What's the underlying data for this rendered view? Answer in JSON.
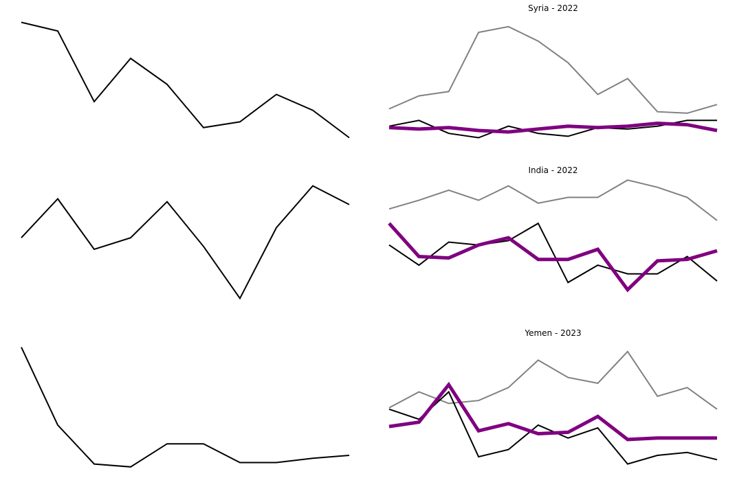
{
  "colors": {
    "black": "#000000",
    "gray": "#808080",
    "purple": "#800080"
  },
  "chart_data": [
    {
      "type": "line",
      "title": "",
      "x": [
        1,
        2,
        3,
        4,
        5,
        6,
        7,
        8,
        9,
        10
      ],
      "ylim": [
        0,
        1
      ],
      "series": [
        {
          "color": "black",
          "values": [
            0.95,
            0.89,
            0.4,
            0.7,
            0.52,
            0.22,
            0.26,
            0.45,
            0.34,
            0.15
          ]
        }
      ]
    },
    {
      "type": "line",
      "title": "Syria - 2022",
      "x": [
        1,
        2,
        3,
        4,
        5,
        6,
        7,
        8,
        9,
        10,
        11,
        12
      ],
      "ylim": [
        0,
        1
      ],
      "series": [
        {
          "color": "gray",
          "values": [
            0.35,
            0.44,
            0.47,
            0.88,
            0.92,
            0.82,
            0.67,
            0.45,
            0.56,
            0.33,
            0.32,
            0.38
          ]
        },
        {
          "color": "black",
          "values": [
            0.23,
            0.27,
            0.18,
            0.15,
            0.23,
            0.18,
            0.16,
            0.22,
            0.21,
            0.23,
            0.27,
            0.27
          ]
        },
        {
          "color": "purple",
          "values": [
            0.22,
            0.21,
            0.22,
            0.2,
            0.19,
            0.21,
            0.23,
            0.22,
            0.23,
            0.25,
            0.24,
            0.2
          ]
        }
      ]
    },
    {
      "type": "line",
      "title": "",
      "x": [
        1,
        2,
        3,
        4,
        5,
        6,
        7,
        8,
        9,
        10
      ],
      "ylim": [
        0,
        1
      ],
      "series": [
        {
          "color": "black",
          "values": [
            0.58,
            0.85,
            0.5,
            0.58,
            0.83,
            0.52,
            0.16,
            0.65,
            0.94,
            0.81
          ]
        }
      ]
    },
    {
      "type": "line",
      "title": "India - 2022",
      "x": [
        1,
        2,
        3,
        4,
        5,
        6,
        7,
        8,
        9,
        10,
        11,
        12
      ],
      "ylim": [
        0,
        1
      ],
      "series": [
        {
          "color": "gray",
          "values": [
            0.78,
            0.84,
            0.91,
            0.84,
            0.94,
            0.82,
            0.86,
            0.86,
            0.98,
            0.93,
            0.86,
            0.7
          ]
        },
        {
          "color": "black",
          "values": [
            0.53,
            0.39,
            0.55,
            0.53,
            0.56,
            0.68,
            0.27,
            0.39,
            0.33,
            0.33,
            0.45,
            0.28
          ]
        },
        {
          "color": "purple",
          "values": [
            0.68,
            0.45,
            0.44,
            0.53,
            0.58,
            0.43,
            0.43,
            0.5,
            0.22,
            0.42,
            0.43,
            0.49
          ]
        }
      ]
    },
    {
      "type": "line",
      "title": "",
      "x": [
        1,
        2,
        3,
        4,
        5,
        6,
        7,
        8,
        9,
        10
      ],
      "ylim": [
        0,
        1
      ],
      "series": [
        {
          "color": "black",
          "values": [
            0.95,
            0.41,
            0.14,
            0.12,
            0.28,
            0.28,
            0.15,
            0.15,
            0.18,
            0.2
          ]
        }
      ]
    },
    {
      "type": "line",
      "title": "Yemen - 2023",
      "x": [
        1,
        2,
        3,
        4,
        5,
        6,
        7,
        8,
        9,
        10,
        11,
        12
      ],
      "ylim": [
        0,
        1
      ],
      "series": [
        {
          "color": "gray",
          "values": [
            0.53,
            0.64,
            0.56,
            0.58,
            0.67,
            0.86,
            0.74,
            0.7,
            0.92,
            0.61,
            0.67,
            0.52
          ]
        },
        {
          "color": "black",
          "values": [
            0.52,
            0.45,
            0.64,
            0.19,
            0.24,
            0.41,
            0.32,
            0.39,
            0.14,
            0.2,
            0.22,
            0.17
          ]
        },
        {
          "color": "purple",
          "values": [
            0.4,
            0.43,
            0.69,
            0.37,
            0.42,
            0.35,
            0.36,
            0.47,
            0.31,
            0.32,
            0.32,
            0.32
          ]
        }
      ]
    }
  ]
}
